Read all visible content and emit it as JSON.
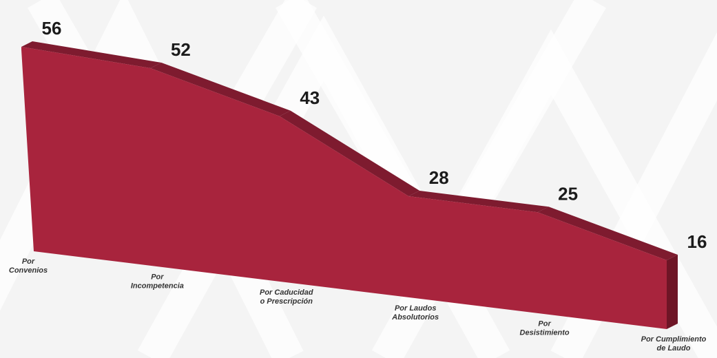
{
  "chart_data": {
    "type": "area",
    "title": "",
    "xlabel": "",
    "ylabel": "",
    "categories": [
      [
        "Por",
        "Convenios"
      ],
      [
        "Por",
        "Incompetencia"
      ],
      [
        "Por Caducidad",
        "o Prescripción"
      ],
      [
        "Por Laudos",
        "Absolutorios"
      ],
      [
        "Por",
        "Desistimiento"
      ],
      [
        "Por Cumplimiento",
        "de Laudo"
      ]
    ],
    "values": [
      56,
      52,
      43,
      28,
      25,
      16
    ],
    "colors": {
      "front": "#a8243d",
      "top": "#7e1b2f",
      "side": "#6e1526",
      "background": "#f4f4f4",
      "pattern": "#ffffff"
    }
  }
}
